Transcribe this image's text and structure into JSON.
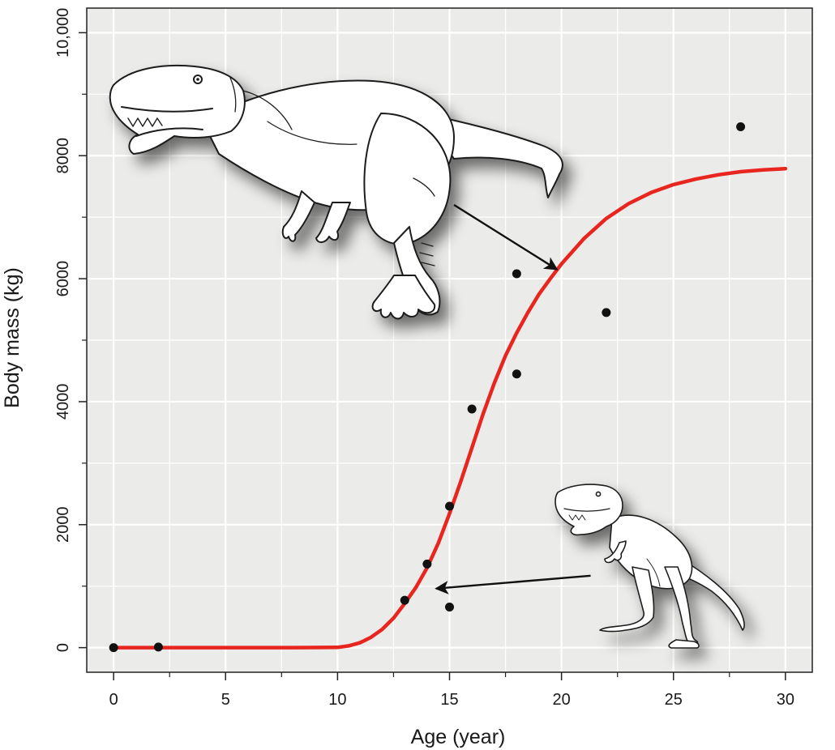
{
  "chart_data": {
    "type": "scatter",
    "xlabel": "Age (year)",
    "ylabel": "Body mass (kg)",
    "xlim": [
      -1.2,
      31.2
    ],
    "ylim": [
      -400,
      10400
    ],
    "x_ticks": [
      0,
      5,
      10,
      15,
      20,
      25,
      30
    ],
    "x_tick_labels": [
      "0",
      "5",
      "10",
      "15",
      "20",
      "25",
      "30"
    ],
    "x_minor_ticks": [
      2.5,
      7.5,
      12.5,
      17.5,
      22.5,
      27.5
    ],
    "y_ticks": [
      0,
      2000,
      4000,
      6000,
      8000,
      10000
    ],
    "y_tick_labels": [
      "0",
      "2000",
      "4000",
      "6000",
      "8000",
      "10,000"
    ],
    "y_minor_ticks": [
      1000,
      3000,
      5000,
      7000,
      9000
    ],
    "grid": true,
    "background_color": "#ebebe9",
    "grid_color": "#ffffff",
    "curve_color": "#e8251f",
    "point_color": "#111111",
    "points": [
      {
        "x": 0,
        "y": 0
      },
      {
        "x": 2,
        "y": 10
      },
      {
        "x": 13,
        "y": 770
      },
      {
        "x": 14,
        "y": 1360
      },
      {
        "x": 15,
        "y": 660
      },
      {
        "x": 15,
        "y": 2300
      },
      {
        "x": 16,
        "y": 3880
      },
      {
        "x": 18,
        "y": 4450
      },
      {
        "x": 18,
        "y": 6080
      },
      {
        "x": 22,
        "y": 5450
      },
      {
        "x": 28,
        "y": 8470
      }
    ],
    "curve": [
      {
        "x": 0,
        "y": 0
      },
      {
        "x": 2,
        "y": 0
      },
      {
        "x": 4,
        "y": 0
      },
      {
        "x": 6,
        "y": 0
      },
      {
        "x": 8,
        "y": 0
      },
      {
        "x": 10,
        "y": 5
      },
      {
        "x": 10.5,
        "y": 30
      },
      {
        "x": 11,
        "y": 80
      },
      {
        "x": 11.5,
        "y": 170
      },
      {
        "x": 12,
        "y": 300
      },
      {
        "x": 12.5,
        "y": 480
      },
      {
        "x": 13,
        "y": 720
      },
      {
        "x": 13.5,
        "y": 980
      },
      {
        "x": 14,
        "y": 1300
      },
      {
        "x": 14.5,
        "y": 1700
      },
      {
        "x": 15,
        "y": 2180
      },
      {
        "x": 15.5,
        "y": 2700
      },
      {
        "x": 16,
        "y": 3250
      },
      {
        "x": 16.5,
        "y": 3800
      },
      {
        "x": 17,
        "y": 4300
      },
      {
        "x": 17.5,
        "y": 4750
      },
      {
        "x": 18,
        "y": 5120
      },
      {
        "x": 18.5,
        "y": 5450
      },
      {
        "x": 19,
        "y": 5750
      },
      {
        "x": 19.5,
        "y": 6000
      },
      {
        "x": 20,
        "y": 6240
      },
      {
        "x": 21,
        "y": 6650
      },
      {
        "x": 22,
        "y": 6980
      },
      {
        "x": 23,
        "y": 7220
      },
      {
        "x": 24,
        "y": 7400
      },
      {
        "x": 25,
        "y": 7530
      },
      {
        "x": 26,
        "y": 7620
      },
      {
        "x": 27,
        "y": 7690
      },
      {
        "x": 28,
        "y": 7740
      },
      {
        "x": 29,
        "y": 7770
      },
      {
        "x": 30,
        "y": 7790
      }
    ],
    "arrows": [
      {
        "from": {
          "x": 15.2,
          "y": 7200
        },
        "to": {
          "x": 19.8,
          "y": 6150
        }
      },
      {
        "from": {
          "x": 21.3,
          "y": 1170
        },
        "to": {
          "x": 14.4,
          "y": 960
        }
      }
    ],
    "illustrations": [
      {
        "name": "adult-tyrannosaurus-illustration",
        "icon": "t-rex-adult-drawing"
      },
      {
        "name": "juvenile-tyrannosaurus-illustration",
        "icon": "t-rex-juvenile-drawing"
      }
    ]
  }
}
